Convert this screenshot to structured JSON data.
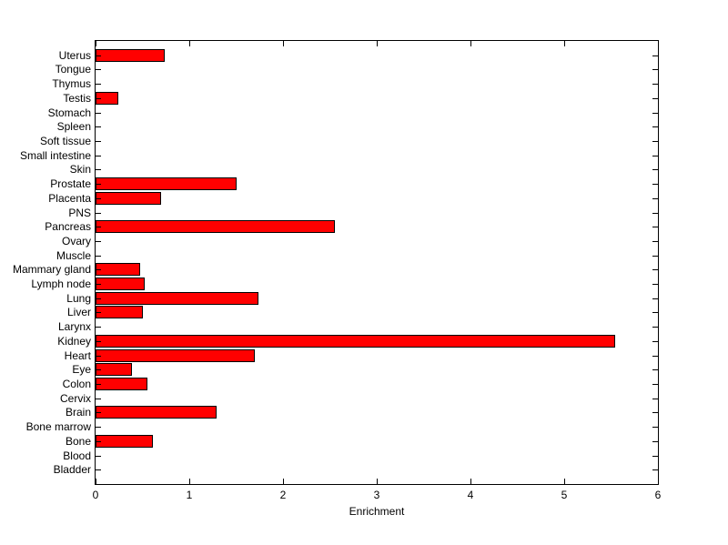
{
  "figure": {
    "background_color": "#FFFFFF",
    "axis_color": "#000000"
  },
  "chart_data": {
    "type": "bar",
    "orientation": "horizontal",
    "title": "",
    "xlabel": "Enrichment",
    "ylabel": "",
    "xlim": [
      0,
      6
    ],
    "x_ticks": [
      0,
      1,
      2,
      3,
      4,
      5,
      6
    ],
    "grid": false,
    "legend": null,
    "bar_color": "#FF0000",
    "bar_edge_color": "#000000",
    "categories": [
      "Uterus",
      "Tongue",
      "Thymus",
      "Testis",
      "Stomach",
      "Spleen",
      "Soft tissue",
      "Small intestine",
      "Skin",
      "Prostate",
      "Placenta",
      "PNS",
      "Pancreas",
      "Ovary",
      "Muscle",
      "Mammary gland",
      "Lymph node",
      "Lung",
      "Liver",
      "Larynx",
      "Kidney",
      "Heart",
      "Eye",
      "Colon",
      "Cervix",
      "Brain",
      "Bone marrow",
      "Bone",
      "Blood",
      "Bladder"
    ],
    "values": [
      0.74,
      0,
      0,
      0.24,
      0,
      0,
      0,
      0,
      0,
      1.5,
      0.7,
      0,
      2.55,
      0,
      0,
      0.48,
      0.52,
      1.74,
      0.5,
      0,
      5.54,
      1.7,
      0.39,
      0.55,
      0,
      1.29,
      0,
      0.61,
      0,
      0
    ]
  }
}
